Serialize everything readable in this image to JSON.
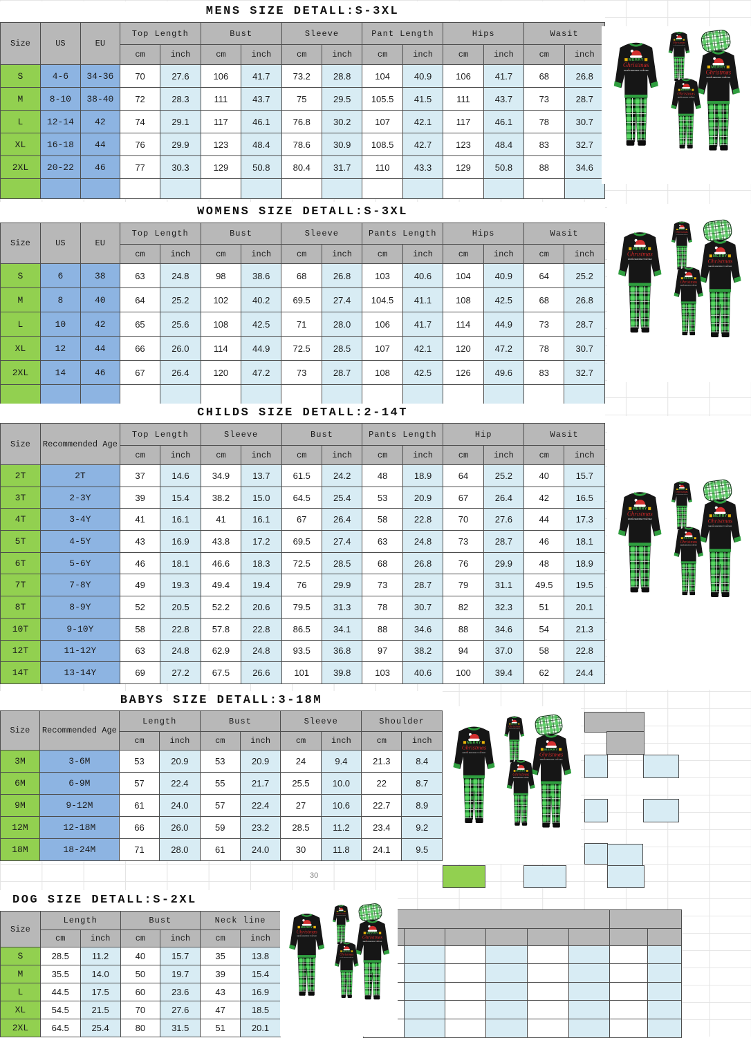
{
  "artifacts": {
    "page_number": "30"
  },
  "colors": {
    "header_gray": "#b8b8b8",
    "size_column_green": "#92d050",
    "id_column_blue": "#8db4e2",
    "inch_column_blue": "#d8ecf4",
    "table_border": "#4d4d4d",
    "plaid_green": "#2f9e3f",
    "shirt_black": "#161616",
    "santa_hat_red": "#d32f2f"
  },
  "photo_names": {
    "mens": "family-christmas-pajamas-photo",
    "womens": "family-christmas-pajamas-photo",
    "childs": "family-christmas-pajamas-photo",
    "babys": "family-christmas-pajamas-photo",
    "dog": "family-christmas-pajamas-photo"
  },
  "pajama_print": {
    "line1": "MERRY",
    "line2": "Christmas",
    "line3": "MAKING MEMORIES TOGETHER"
  },
  "tables": [
    {
      "key": "mens",
      "title": "MENS SIZE DETALL:S-3XL",
      "id_headers": [
        "Size",
        "US",
        "EU"
      ],
      "groups": [
        "Top Length",
        "Bust",
        "Sleeve",
        "Pant Length",
        "Hips",
        "Wasit"
      ],
      "units": [
        "cm",
        "inch"
      ],
      "trailing_empty_row": true,
      "rows": [
        {
          "id": [
            "S",
            "4-6",
            "34-36"
          ],
          "values": [
            "70",
            "27.6",
            "106",
            "41.7",
            "73.2",
            "28.8",
            "104",
            "40.9",
            "106",
            "41.7",
            "68",
            "26.8"
          ]
        },
        {
          "id": [
            "M",
            "8-10",
            "38-40"
          ],
          "values": [
            "72",
            "28.3",
            "111",
            "43.7",
            "75",
            "29.5",
            "105.5",
            "41.5",
            "111",
            "43.7",
            "73",
            "28.7"
          ]
        },
        {
          "id": [
            "L",
            "12-14",
            "42"
          ],
          "values": [
            "74",
            "29.1",
            "117",
            "46.1",
            "76.8",
            "30.2",
            "107",
            "42.1",
            "117",
            "46.1",
            "78",
            "30.7"
          ]
        },
        {
          "id": [
            "XL",
            "16-18",
            "44"
          ],
          "values": [
            "76",
            "29.9",
            "123",
            "48.4",
            "78.6",
            "30.9",
            "108.5",
            "42.7",
            "123",
            "48.4",
            "83",
            "32.7"
          ]
        },
        {
          "id": [
            "2XL",
            "20-22",
            "46"
          ],
          "values": [
            "77",
            "30.3",
            "129",
            "50.8",
            "80.4",
            "31.7",
            "110",
            "43.3",
            "129",
            "50.8",
            "88",
            "34.6"
          ]
        }
      ]
    },
    {
      "key": "womens",
      "title": "WOMENS SIZE DETALL:S-3XL",
      "id_headers": [
        "Size",
        "US",
        "EU"
      ],
      "groups": [
        "Top Length",
        "Bust",
        "Sleeve",
        "Pants Length",
        "Hips",
        "Wasit"
      ],
      "units": [
        "cm",
        "inch"
      ],
      "trailing_empty_row": true,
      "rows": [
        {
          "id": [
            "S",
            "6",
            "38"
          ],
          "values": [
            "63",
            "24.8",
            "98",
            "38.6",
            "68",
            "26.8",
            "103",
            "40.6",
            "104",
            "40.9",
            "64",
            "25.2"
          ]
        },
        {
          "id": [
            "M",
            "8",
            "40"
          ],
          "values": [
            "64",
            "25.2",
            "102",
            "40.2",
            "69.5",
            "27.4",
            "104.5",
            "41.1",
            "108",
            "42.5",
            "68",
            "26.8"
          ]
        },
        {
          "id": [
            "L",
            "10",
            "42"
          ],
          "values": [
            "65",
            "25.6",
            "108",
            "42.5",
            "71",
            "28.0",
            "106",
            "41.7",
            "114",
            "44.9",
            "73",
            "28.7"
          ]
        },
        {
          "id": [
            "XL",
            "12",
            "44"
          ],
          "values": [
            "66",
            "26.0",
            "114",
            "44.9",
            "72.5",
            "28.5",
            "107",
            "42.1",
            "120",
            "47.2",
            "78",
            "30.7"
          ]
        },
        {
          "id": [
            "2XL",
            "14",
            "46"
          ],
          "values": [
            "67",
            "26.4",
            "120",
            "47.2",
            "73",
            "28.7",
            "108",
            "42.5",
            "126",
            "49.6",
            "83",
            "32.7"
          ]
        }
      ]
    },
    {
      "key": "childs",
      "title": "CHILDS SIZE DETALL:2-14T",
      "id_headers": [
        "Size",
        "Recommended Age"
      ],
      "groups": [
        "Top Length",
        "Sleeve",
        "Bust",
        "Pants Length",
        "Hip",
        "Wasit"
      ],
      "units": [
        "cm",
        "inch"
      ],
      "trailing_empty_row": false,
      "rows": [
        {
          "id": [
            "2T",
            "2T"
          ],
          "values": [
            "37",
            "14.6",
            "34.9",
            "13.7",
            "61.5",
            "24.2",
            "48",
            "18.9",
            "64",
            "25.2",
            "40",
            "15.7"
          ]
        },
        {
          "id": [
            "3T",
            "2-3Y"
          ],
          "values": [
            "39",
            "15.4",
            "38.2",
            "15.0",
            "64.5",
            "25.4",
            "53",
            "20.9",
            "67",
            "26.4",
            "42",
            "16.5"
          ]
        },
        {
          "id": [
            "4T",
            "3-4Y"
          ],
          "values": [
            "41",
            "16.1",
            "41",
            "16.1",
            "67",
            "26.4",
            "58",
            "22.8",
            "70",
            "27.6",
            "44",
            "17.3"
          ]
        },
        {
          "id": [
            "5T",
            "4-5Y"
          ],
          "values": [
            "43",
            "16.9",
            "43.8",
            "17.2",
            "69.5",
            "27.4",
            "63",
            "24.8",
            "73",
            "28.7",
            "46",
            "18.1"
          ]
        },
        {
          "id": [
            "6T",
            "5-6Y"
          ],
          "values": [
            "46",
            "18.1",
            "46.6",
            "18.3",
            "72.5",
            "28.5",
            "68",
            "26.8",
            "76",
            "29.9",
            "48",
            "18.9"
          ]
        },
        {
          "id": [
            "7T",
            "7-8Y"
          ],
          "values": [
            "49",
            "19.3",
            "49.4",
            "19.4",
            "76",
            "29.9",
            "73",
            "28.7",
            "79",
            "31.1",
            "49.5",
            "19.5"
          ]
        },
        {
          "id": [
            "8T",
            "8-9Y"
          ],
          "values": [
            "52",
            "20.5",
            "52.2",
            "20.6",
            "79.5",
            "31.3",
            "78",
            "30.7",
            "82",
            "32.3",
            "51",
            "20.1"
          ]
        },
        {
          "id": [
            "10T",
            "9-10Y"
          ],
          "values": [
            "58",
            "22.8",
            "57.8",
            "22.8",
            "86.5",
            "34.1",
            "88",
            "34.6",
            "88",
            "34.6",
            "54",
            "21.3"
          ]
        },
        {
          "id": [
            "12T",
            "11-12Y"
          ],
          "values": [
            "63",
            "24.8",
            "62.9",
            "24.8",
            "93.5",
            "36.8",
            "97",
            "38.2",
            "94",
            "37.0",
            "58",
            "22.8"
          ]
        },
        {
          "id": [
            "14T",
            "13-14Y"
          ],
          "values": [
            "69",
            "27.2",
            "67.5",
            "26.6",
            "101",
            "39.8",
            "103",
            "40.6",
            "100",
            "39.4",
            "62",
            "24.4"
          ]
        }
      ]
    },
    {
      "key": "babys",
      "title": "BABYS SIZE DETALL:3-18M",
      "id_headers": [
        "Size",
        "Recommended Age"
      ],
      "groups": [
        "Length",
        "Bust",
        "Sleeve",
        "Shoulder"
      ],
      "units": [
        "cm",
        "inch"
      ],
      "trailing_empty_row": false,
      "rows": [
        {
          "id": [
            "3M",
            "3-6M"
          ],
          "values": [
            "53",
            "20.9",
            "53",
            "20.9",
            "24",
            "9.4",
            "21.3",
            "8.4"
          ]
        },
        {
          "id": [
            "6M",
            "6-9M"
          ],
          "values": [
            "57",
            "22.4",
            "55",
            "21.7",
            "25.5",
            "10.0",
            "22",
            "8.7"
          ]
        },
        {
          "id": [
            "9M",
            "9-12M"
          ],
          "values": [
            "61",
            "24.0",
            "57",
            "22.4",
            "27",
            "10.6",
            "22.7",
            "8.9"
          ]
        },
        {
          "id": [
            "12M",
            "12-18M"
          ],
          "values": [
            "66",
            "26.0",
            "59",
            "23.2",
            "28.5",
            "11.2",
            "23.4",
            "9.2"
          ]
        },
        {
          "id": [
            "18M",
            "18-24M"
          ],
          "values": [
            "71",
            "28.0",
            "61",
            "24.0",
            "30",
            "11.8",
            "24.1",
            "9.5"
          ]
        }
      ]
    },
    {
      "key": "dog",
      "title": "DOG SIZE DETALL:S-2XL",
      "id_headers": [
        "Size"
      ],
      "groups": [
        "Length",
        "Bust",
        "Neck line"
      ],
      "units": [
        "cm",
        "inch"
      ],
      "trailing_empty_row": false,
      "rows": [
        {
          "id": [
            "S"
          ],
          "values": [
            "28.5",
            "11.2",
            "40",
            "15.7",
            "35",
            "13.8"
          ]
        },
        {
          "id": [
            "M"
          ],
          "values": [
            "35.5",
            "14.0",
            "50",
            "19.7",
            "39",
            "15.4"
          ]
        },
        {
          "id": [
            "L"
          ],
          "values": [
            "44.5",
            "17.5",
            "60",
            "23.6",
            "43",
            "16.9"
          ]
        },
        {
          "id": [
            "XL"
          ],
          "values": [
            "54.5",
            "21.5",
            "70",
            "27.6",
            "47",
            "18.5"
          ]
        },
        {
          "id": [
            "2XL"
          ],
          "values": [
            "64.5",
            "25.4",
            "80",
            "31.5",
            "51",
            "20.1"
          ]
        }
      ]
    }
  ]
}
